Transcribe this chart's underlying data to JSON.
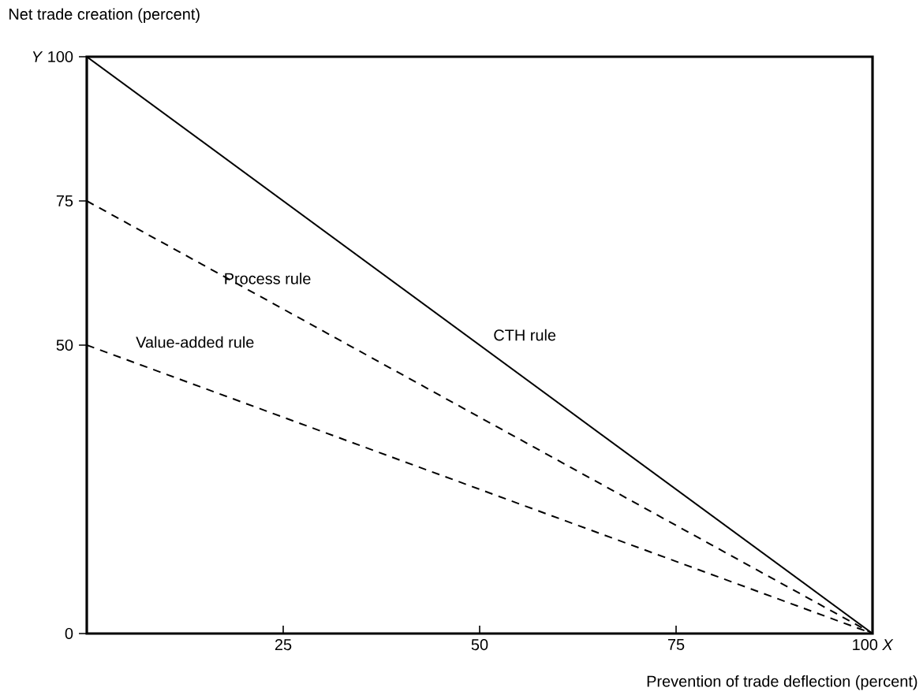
{
  "chart_data": {
    "type": "line",
    "xlabel": "Prevention of trade deflection (percent)",
    "ylabel": "Net trade creation (percent)",
    "x": [
      0,
      100
    ],
    "series": [
      {
        "name": "CTH rule",
        "color": "#000000",
        "values": [
          100,
          0
        ],
        "line_style": "solid"
      },
      {
        "name": "Process rule",
        "color": "#000000",
        "values": [
          75,
          0
        ],
        "line_style": "dashed"
      },
      {
        "name": "Value-added rule",
        "color": "#000000",
        "values": [
          50,
          0
        ],
        "line_style": "dashed"
      }
    ],
    "xlim": [
      0,
      100
    ],
    "ylim": [
      0,
      100
    ],
    "xticks": [
      25,
      50,
      75,
      {
        "value": 100,
        "label": "100 *X*"
      }
    ],
    "yticks": [
      0,
      50,
      75,
      {
        "value": 100,
        "label": "*Y* 100"
      }
    ],
    "grid": false,
    "legend": false,
    "marker": "none"
  }
}
